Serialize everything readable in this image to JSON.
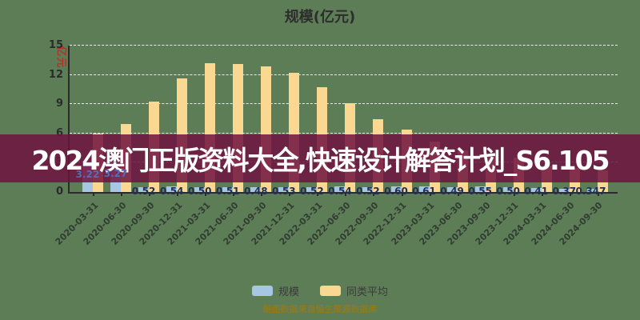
{
  "title": "规模(亿元)",
  "unit_label": "亿元",
  "overlay": {
    "text": "2024澳门正版资料大全,快速设计解答计划_S6.105"
  },
  "caption": "制图数据来自恒生聚源数据库",
  "colors": {
    "background": "#5d7d57",
    "banner": "rgba(110,18,64,0.85)",
    "banner_text": "#ffffff",
    "bar_blue": "#a6c6e4",
    "bar_yellow": "#fbd892",
    "gridline": "rgba(255,255,255,0.85)",
    "axis": "#2b2b2b",
    "value_label": "#203055",
    "value_label_large": "#5b6bb0",
    "unit_label": "#b8322a",
    "caption_text": "#8f7a1f"
  },
  "legend": {
    "items": [
      {
        "label": "规模",
        "color": "#a6c6e4"
      },
      {
        "label": "同类平均",
        "color": "#fbd892"
      }
    ]
  },
  "chart_data": {
    "type": "bar",
    "title": "规模(亿元)",
    "ylabel": "亿元",
    "ylim": [
      0,
      15
    ],
    "yticks": [
      0,
      3,
      6,
      9,
      12,
      15
    ],
    "grid": true,
    "legend_position": "bottom",
    "categories": [
      "2020-03-31",
      "2020-06-30",
      "2020-09-30",
      "2020-12-31",
      "2021-03-31",
      "2021-06-30",
      "2021-09-30",
      "2021-12-31",
      "2022-03-31",
      "2022-06-30",
      "2022-09-30",
      "2022-12-31",
      "2023-03-31",
      "2023-06-30",
      "2023-09-30",
      "2023-12-31",
      "2024-03-31",
      "2024-06-30",
      "2024-09-30"
    ],
    "series": [
      {
        "name": "规模",
        "color": "#a6c6e4",
        "values": [
          3.22,
          3.27,
          0.52,
          0.54,
          0.5,
          0.51,
          0.48,
          0.53,
          0.52,
          0.54,
          0.52,
          0.6,
          0.61,
          0.49,
          0.55,
          0.5,
          0.41,
          0.37,
          0.347
        ],
        "value_labels": [
          "3.22",
          "3.27",
          "0.52",
          "0.54",
          "0.50",
          "0.51",
          "0.48",
          "0.53",
          "0.52",
          "0.54",
          "0.52",
          "0.60",
          "0.61",
          "0.49",
          "0.55",
          "0.50",
          "0.41",
          "0.37",
          "0.347"
        ]
      },
      {
        "name": "同类平均",
        "color": "#fbd892",
        "values": [
          6.0,
          7.0,
          9.3,
          11.6,
          13.2,
          13.1,
          12.9,
          12.2,
          10.7,
          9.1,
          7.5,
          6.4,
          5.2,
          4.3,
          3.8,
          3.5,
          2.7,
          2.5,
          2.2
        ],
        "value_labels": []
      }
    ]
  }
}
